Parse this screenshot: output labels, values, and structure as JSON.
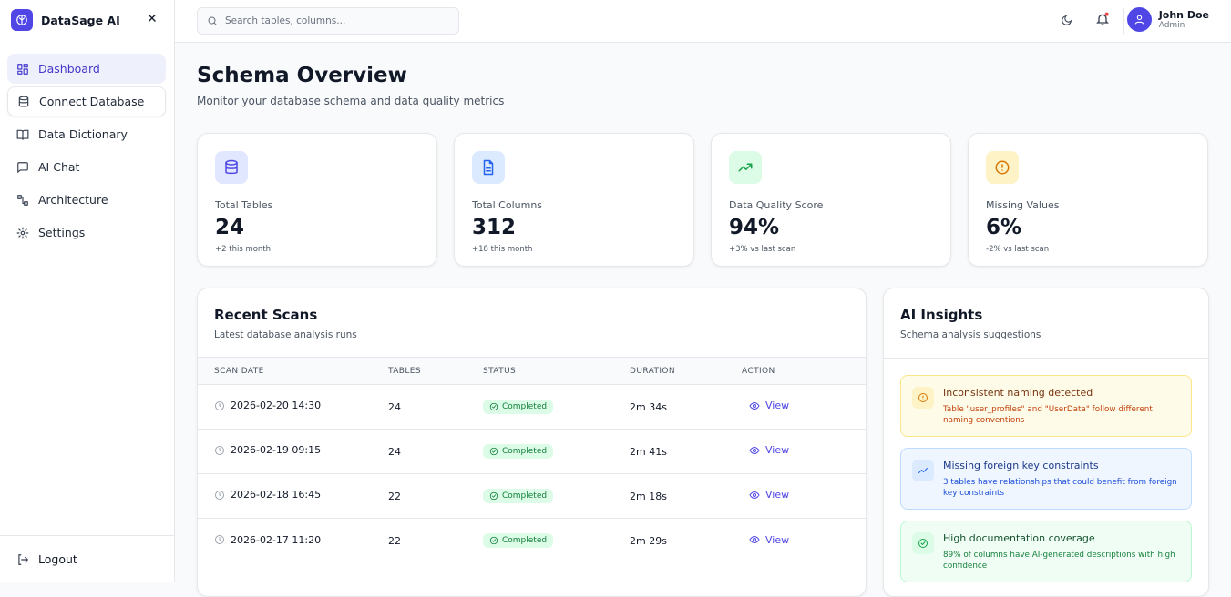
{
  "sidebar": {
    "brand": "DataSage AI",
    "nav": [
      "Dashboard",
      "Connect Database",
      "Data Dictionary",
      "AI Chat",
      "Architecture",
      "Settings"
    ],
    "logout": "Logout"
  },
  "header": {
    "search_placeholder": "Search tables, columns...",
    "user_name": "John Doe",
    "user_role": "Admin"
  },
  "page": {
    "title": "Schema Overview",
    "subtitle": "Monitor your database schema and data quality metrics"
  },
  "stats": [
    {
      "label": "Total Tables",
      "value": "24",
      "note": "+2 this month"
    },
    {
      "label": "Total Columns",
      "value": "312",
      "note": "+18 this month"
    },
    {
      "label": "Data Quality Score",
      "value": "94%",
      "note": "+3% vs last scan"
    },
    {
      "label": "Missing Values",
      "value": "6%",
      "note": "-2% vs last scan"
    }
  ],
  "scans": {
    "title": "Recent Scans",
    "subtitle": "Latest database analysis runs",
    "columns": [
      "SCAN DATE",
      "TABLES",
      "STATUS",
      "DURATION",
      "ACTION"
    ],
    "rows": [
      [
        "2026-02-20 14:30",
        "24",
        "Completed",
        "2m 34s",
        "View"
      ],
      [
        "2026-02-19 09:15",
        "24",
        "Completed",
        "2m 41s",
        "View"
      ],
      [
        "2026-02-18 16:45",
        "22",
        "Completed",
        "2m 18s",
        "View"
      ],
      [
        "2026-02-17 11:20",
        "22",
        "Completed",
        "2m 29s",
        "View"
      ]
    ]
  },
  "insights": {
    "title": "AI Insights",
    "subtitle": "Schema analysis suggestions",
    "items": [
      {
        "title": "Inconsistent naming detected",
        "text": "Table \"user_profiles\" and \"UserData\" follow different naming conventions"
      },
      {
        "title": "Missing foreign key constraints",
        "text": "3 tables have relationships that could benefit from foreign key constraints"
      },
      {
        "title": "High documentation coverage",
        "text": "89% of columns have AI-generated descriptions with high confidence"
      }
    ]
  }
}
